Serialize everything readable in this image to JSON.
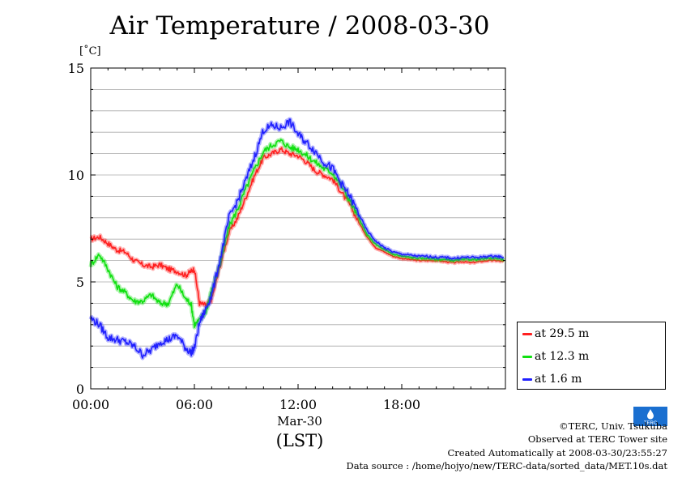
{
  "title": "Air Temperature / 2008-03-30",
  "unit_label": "[˚C]",
  "x_date_label": "Mar-30",
  "x_zone_label": "(LST)",
  "colors": {
    "series_29_5": "#ff2020",
    "series_12_3": "#10e010",
    "series_1_6": "#2020ff",
    "grid": "#aaaaaa"
  },
  "legend": [
    {
      "label": "at 29.5 m",
      "color": "#ff2020"
    },
    {
      "label": "at 12.3 m",
      "color": "#10e010"
    },
    {
      "label": "at 1.6 m",
      "color": "#2020ff"
    }
  ],
  "credits": {
    "copyright": "©TERC, Univ. Tsukuba",
    "observed": "Observed at TERC Tower site",
    "created": "Created Automatically at 2008-03-30/23:55:27",
    "source": "Data source : /home/hojyo/new/TERC-data/sorted_data/MET.10s.dat"
  },
  "logo_text": "TERC",
  "logo_icon": "terc-logo-icon",
  "chart_data": {
    "type": "line",
    "title": "Air Temperature / 2008-03-30",
    "ylabel": "[˚C]",
    "xlabel": "Mar-30 (LST)",
    "xlim": [
      0,
      24
    ],
    "ylim": [
      0,
      15
    ],
    "xticks": [
      0,
      6,
      12,
      18
    ],
    "xtick_labels": [
      "00:00",
      "06:00",
      "12:00",
      "18:00"
    ],
    "yticks": [
      0,
      5,
      10,
      15
    ],
    "ytick_labels": [
      "0",
      "5",
      "10",
      "15"
    ],
    "grid": true,
    "legend_position": "bottom-right outside",
    "series": [
      {
        "name": "at 29.5 m",
        "x": [
          0,
          0.5,
          1,
          1.5,
          2,
          2.5,
          3,
          3.5,
          4,
          4.5,
          5,
          5.5,
          5.8,
          6.0,
          6.3,
          6.7,
          7,
          7.5,
          8,
          8.5,
          9,
          9.5,
          10,
          10.5,
          11,
          11.5,
          12,
          12.5,
          13,
          13.5,
          14,
          14.5,
          15,
          15.5,
          16,
          16.5,
          17,
          17.5,
          18,
          18.5,
          19,
          19.5,
          20,
          20.5,
          21,
          21.5,
          22,
          22.5,
          23,
          23.5,
          23.9
        ],
        "y": [
          7.0,
          7.1,
          6.8,
          6.5,
          6.4,
          6.0,
          5.8,
          5.7,
          5.8,
          5.6,
          5.5,
          5.3,
          5.5,
          5.6,
          4.0,
          3.9,
          4.2,
          5.8,
          7.3,
          8.0,
          9.0,
          10.0,
          10.8,
          11.0,
          11.2,
          11.0,
          10.9,
          10.6,
          10.2,
          10.0,
          9.8,
          9.2,
          8.6,
          7.8,
          7.1,
          6.6,
          6.4,
          6.2,
          6.1,
          6.05,
          6.0,
          6.0,
          6.0,
          5.95,
          5.9,
          5.95,
          5.9,
          5.95,
          6.0,
          6.0,
          5.95
        ]
      },
      {
        "name": "at 12.3 m",
        "x": [
          0,
          0.5,
          1,
          1.5,
          2,
          2.5,
          3,
          3.5,
          4,
          4.5,
          5,
          5.5,
          5.8,
          6.0,
          6.3,
          6.7,
          7,
          7.5,
          8,
          8.5,
          9,
          9.5,
          10,
          10.5,
          11,
          11.5,
          12,
          12.5,
          13,
          13.5,
          14,
          14.5,
          15,
          15.5,
          16,
          16.5,
          17,
          17.5,
          18,
          18.5,
          19,
          19.5,
          20,
          20.5,
          21,
          21.5,
          22,
          22.5,
          23,
          23.5,
          23.9
        ],
        "y": [
          5.8,
          6.3,
          5.6,
          4.8,
          4.5,
          4.1,
          4.1,
          4.4,
          4.0,
          4.0,
          4.9,
          4.2,
          4.0,
          3.0,
          3.2,
          3.7,
          4.6,
          5.9,
          7.6,
          8.4,
          9.4,
          10.3,
          11.1,
          11.4,
          11.6,
          11.3,
          11.2,
          10.9,
          10.6,
          10.3,
          10.1,
          9.5,
          8.8,
          8.0,
          7.2,
          6.75,
          6.5,
          6.3,
          6.2,
          6.15,
          6.1,
          6.1,
          6.05,
          6.05,
          6.0,
          6.05,
          6.05,
          6.05,
          6.1,
          6.1,
          6.05
        ]
      },
      {
        "name": "at 1.6 m",
        "x": [
          0,
          0.5,
          1,
          1.5,
          2,
          2.5,
          3,
          3.5,
          4,
          4.5,
          5,
          5.5,
          5.8,
          6.0,
          6.3,
          6.7,
          7,
          7.5,
          8,
          8.5,
          9,
          9.5,
          10,
          10.5,
          11,
          11.5,
          12,
          12.5,
          13,
          13.5,
          14,
          14.5,
          15,
          15.5,
          16,
          16.5,
          17,
          17.5,
          18,
          18.5,
          19,
          19.5,
          20,
          20.5,
          21,
          21.5,
          22,
          22.5,
          23,
          23.5,
          23.9
        ],
        "y": [
          3.3,
          3.0,
          2.4,
          2.3,
          2.2,
          2.0,
          1.6,
          1.8,
          2.2,
          2.3,
          2.5,
          1.9,
          1.7,
          1.9,
          3.1,
          3.8,
          4.4,
          6.1,
          8.0,
          8.8,
          9.8,
          10.9,
          12.1,
          12.3,
          12.2,
          12.5,
          11.9,
          11.5,
          11.1,
          10.6,
          10.3,
          9.6,
          9.0,
          8.2,
          7.4,
          6.9,
          6.6,
          6.4,
          6.3,
          6.25,
          6.2,
          6.2,
          6.15,
          6.15,
          6.1,
          6.15,
          6.15,
          6.15,
          6.2,
          6.2,
          6.15
        ]
      }
    ]
  }
}
